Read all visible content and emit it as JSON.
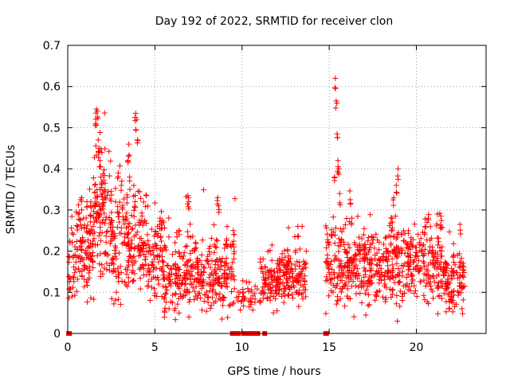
{
  "chart_data": {
    "type": "scatter",
    "title": "Day 192 of 2022, SRMTID for receiver clon",
    "xlabel": "GPS time / hours",
    "ylabel": "SRMTID / TECUs",
    "xlim": [
      0,
      24
    ],
    "ylim": [
      0,
      0.7
    ],
    "xticks": [
      0,
      5,
      10,
      15,
      20
    ],
    "xtick_labels": [
      "0",
      "5",
      "10",
      "15",
      "20"
    ],
    "yticks": [
      0,
      0.1,
      0.2,
      0.3,
      0.4,
      0.5,
      0.6,
      0.7
    ],
    "ytick_labels": [
      "0",
      "0.1",
      "0.2",
      "0.3",
      "0.4",
      "0.5",
      "0.6",
      "0.7"
    ],
    "grid": true,
    "marker": "plus",
    "color": "#ff0000",
    "series": [
      {
        "name": "SRMTID",
        "segments": [
          {
            "x_start": 0.05,
            "x_end": 0.45,
            "mean": 0.15,
            "spread": 0.05,
            "count": 30
          },
          {
            "x_start": 0.45,
            "x_end": 1.5,
            "mean": 0.21,
            "spread": 0.06,
            "count": 110
          },
          {
            "x_start": 1.5,
            "x_end": 2.5,
            "mean": 0.28,
            "spread": 0.09,
            "count": 110
          },
          {
            "x_start": 2.5,
            "x_end": 3.6,
            "mean": 0.21,
            "spread": 0.07,
            "count": 110
          },
          {
            "x_start": 3.6,
            "x_end": 4.5,
            "mean": 0.22,
            "spread": 0.07,
            "count": 90
          },
          {
            "x_start": 4.5,
            "x_end": 5.5,
            "mean": 0.18,
            "spread": 0.05,
            "count": 90
          },
          {
            "x_start": 5.5,
            "x_end": 7.0,
            "mean": 0.13,
            "spread": 0.05,
            "count": 130
          },
          {
            "x_start": 7.0,
            "x_end": 8.5,
            "mean": 0.14,
            "spread": 0.05,
            "count": 130
          },
          {
            "x_start": 8.5,
            "x_end": 9.6,
            "mean": 0.15,
            "spread": 0.06,
            "count": 90
          },
          {
            "x_start": 9.6,
            "x_end": 11.0,
            "mean": 0.085,
            "spread": 0.02,
            "count": 35
          },
          {
            "x_start": 11.0,
            "x_end": 12.5,
            "mean": 0.13,
            "spread": 0.035,
            "count": 130
          },
          {
            "x_start": 12.5,
            "x_end": 13.7,
            "mean": 0.14,
            "spread": 0.04,
            "count": 100
          },
          {
            "x_start": 14.8,
            "x_end": 15.5,
            "mean": 0.17,
            "spread": 0.06,
            "count": 60
          },
          {
            "x_start": 15.5,
            "x_end": 17.0,
            "mean": 0.17,
            "spread": 0.05,
            "count": 140
          },
          {
            "x_start": 17.0,
            "x_end": 18.5,
            "mean": 0.15,
            "spread": 0.05,
            "count": 140
          },
          {
            "x_start": 18.5,
            "x_end": 19.5,
            "mean": 0.17,
            "spread": 0.06,
            "count": 90
          },
          {
            "x_start": 19.5,
            "x_end": 21.5,
            "mean": 0.16,
            "spread": 0.05,
            "count": 180
          },
          {
            "x_start": 21.5,
            "x_end": 22.8,
            "mean": 0.13,
            "spread": 0.04,
            "count": 110
          }
        ],
        "peaks": [
          {
            "x": 1.65,
            "y": 0.545
          },
          {
            "x": 1.7,
            "y": 0.54
          },
          {
            "x": 1.6,
            "y": 0.51
          },
          {
            "x": 1.75,
            "y": 0.47
          },
          {
            "x": 1.8,
            "y": 0.45
          },
          {
            "x": 1.85,
            "y": 0.42
          },
          {
            "x": 1.9,
            "y": 0.38
          },
          {
            "x": 1.55,
            "y": 0.36
          },
          {
            "x": 2.0,
            "y": 0.34
          },
          {
            "x": 3.5,
            "y": 0.46
          },
          {
            "x": 3.45,
            "y": 0.42
          },
          {
            "x": 3.55,
            "y": 0.38
          },
          {
            "x": 3.9,
            "y": 0.535
          },
          {
            "x": 3.95,
            "y": 0.52
          },
          {
            "x": 4.0,
            "y": 0.47
          },
          {
            "x": 2.9,
            "y": 0.39
          },
          {
            "x": 3.1,
            "y": 0.37
          },
          {
            "x": 0.6,
            "y": 0.29
          },
          {
            "x": 0.8,
            "y": 0.33
          },
          {
            "x": 1.1,
            "y": 0.32
          },
          {
            "x": 1.3,
            "y": 0.31
          },
          {
            "x": 5.3,
            "y": 0.28
          },
          {
            "x": 6.4,
            "y": 0.25
          },
          {
            "x": 6.9,
            "y": 0.335
          },
          {
            "x": 6.95,
            "y": 0.32
          },
          {
            "x": 8.6,
            "y": 0.33
          },
          {
            "x": 8.65,
            "y": 0.31
          },
          {
            "x": 9.5,
            "y": 0.25
          },
          {
            "x": 9.55,
            "y": 0.24
          },
          {
            "x": 13.2,
            "y": 0.26
          },
          {
            "x": 15.35,
            "y": 0.62
          },
          {
            "x": 15.4,
            "y": 0.565
          },
          {
            "x": 15.45,
            "y": 0.485
          },
          {
            "x": 15.5,
            "y": 0.42
          },
          {
            "x": 15.55,
            "y": 0.4
          },
          {
            "x": 15.3,
            "y": 0.38
          },
          {
            "x": 15.6,
            "y": 0.34
          },
          {
            "x": 16.2,
            "y": 0.325
          },
          {
            "x": 16.3,
            "y": 0.28
          },
          {
            "x": 18.95,
            "y": 0.4
          },
          {
            "x": 18.85,
            "y": 0.36
          },
          {
            "x": 18.7,
            "y": 0.33
          },
          {
            "x": 18.6,
            "y": 0.28
          },
          {
            "x": 21.2,
            "y": 0.29
          },
          {
            "x": 21.4,
            "y": 0.285
          },
          {
            "x": 22.5,
            "y": 0.265
          },
          {
            "x": 20.5,
            "y": 0.26
          }
        ],
        "lows": [
          {
            "x": 6.95,
            "y": 0.04
          },
          {
            "x": 8.85,
            "y": 0.035
          },
          {
            "x": 5.4,
            "y": 0.09
          },
          {
            "x": 10.5,
            "y": 0.07
          },
          {
            "x": 11.8,
            "y": 0.05
          },
          {
            "x": 12.0,
            "y": 0.055
          },
          {
            "x": 17.3,
            "y": 0.07
          },
          {
            "x": 19.2,
            "y": 0.08
          },
          {
            "x": 21.9,
            "y": 0.06
          },
          {
            "x": 22.2,
            "y": 0.065
          }
        ],
        "zero_points_x": [
          0.05,
          0.1,
          9.45,
          9.6,
          9.7,
          9.8,
          10.1,
          10.3,
          10.5,
          10.7,
          10.9,
          11.3,
          14.8,
          14.85
        ]
      }
    ]
  }
}
